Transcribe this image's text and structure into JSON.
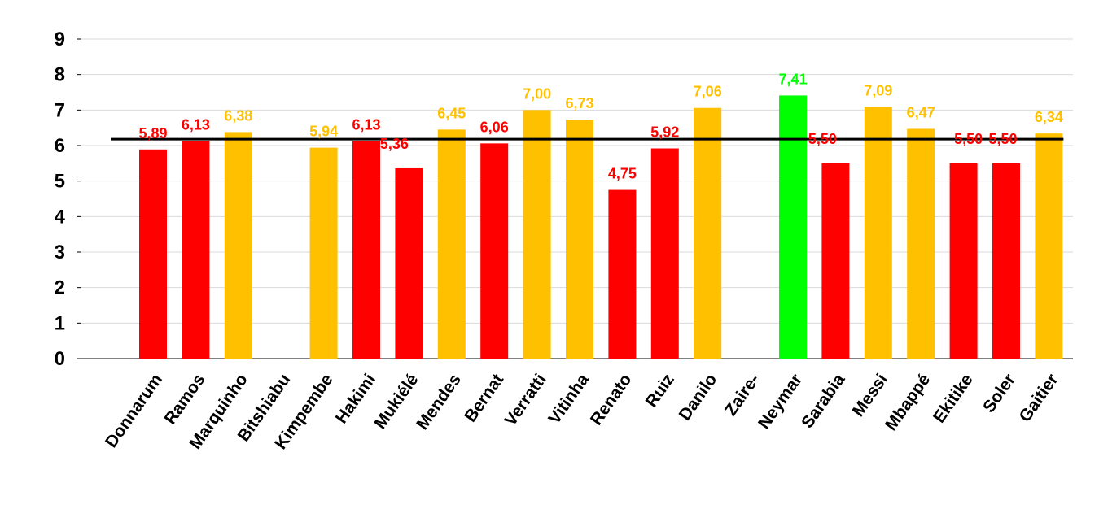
{
  "chart_data": {
    "type": "bar",
    "ylim": [
      0,
      9
    ],
    "y_ticks": [
      "0",
      "1",
      "2",
      "3",
      "4",
      "5",
      "6",
      "7",
      "8",
      "9"
    ],
    "grid": true,
    "average_line": 6.18,
    "categories": [
      "Donnarum",
      "Ramos",
      "Marquinho",
      "Bitshiabu",
      "Kimpembe",
      "Hakimi",
      "Mukiélé",
      "Mendes",
      "Bernat",
      "Verratti",
      "Vitinha",
      "Renato",
      "Ruiz",
      "Danilo",
      "Zaire-",
      "Neymar",
      "Sarabia",
      "Messi",
      "Mbappé",
      "Ekitike",
      "Soler",
      "Gaitier"
    ],
    "values": [
      5.89,
      6.13,
      6.38,
      null,
      5.94,
      6.13,
      5.36,
      6.45,
      6.06,
      7.0,
      6.73,
      4.75,
      5.92,
      7.06,
      null,
      7.41,
      5.5,
      7.09,
      6.47,
      5.5,
      5.5,
      6.34
    ],
    "labels": [
      "5,89",
      "6,13",
      "6,38",
      "",
      "5,94",
      "6,13",
      "5,36",
      "6,45",
      "6,06",
      "7,00",
      "6,73",
      "4,75",
      "5,92",
      "7,06",
      "",
      "7,41",
      "5,50",
      "7,09",
      "6,47",
      "5,50",
      "5,50",
      "6,34"
    ],
    "bar_colors": [
      "#ff0000",
      "#ff0000",
      "#ffc000",
      null,
      "#ffc000",
      "#ff0000",
      "#ff0000",
      "#ffc000",
      "#ff0000",
      "#ffc000",
      "#ffc000",
      "#ff0000",
      "#ff0000",
      "#ffc000",
      null,
      "#00ff00",
      "#ff0000",
      "#ffc000",
      "#ffc000",
      "#ff0000",
      "#ff0000",
      "#ffc000"
    ],
    "colors": {
      "low": "#ff0000",
      "mid": "#ffc000",
      "high": "#00ff00",
      "average_line": "#000000"
    }
  }
}
